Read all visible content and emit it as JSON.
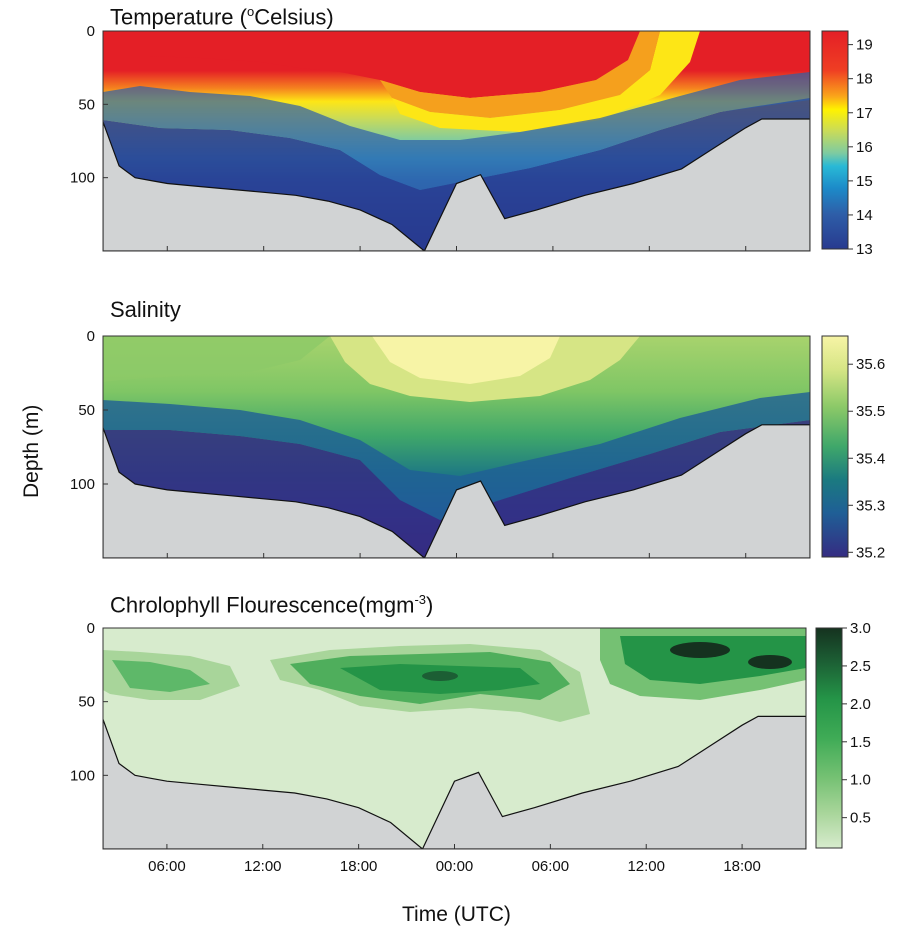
{
  "figure": {
    "xlabel": "Time (UTC)",
    "ylabel": "Depth (m)"
  },
  "chart_data": [
    {
      "type": "heatmap",
      "title": "Temperature (°Celsius)",
      "title_parts": {
        "before": "Temperature (",
        "sup": "o",
        "after": "Celsius)"
      },
      "x_ticks": [
        "06:00",
        "12:00",
        "18:00",
        "00:00",
        "06:00",
        "12:00",
        "18:00"
      ],
      "x_tick_labels_shown": false,
      "y_ticks": [
        0,
        50,
        100
      ],
      "ylim": [
        150,
        0
      ],
      "colorbar": {
        "ticks": [
          19,
          18,
          17,
          16,
          15,
          14,
          13
        ],
        "range": [
          13,
          19.4
        ],
        "colors": [
          "#e41f26",
          "#f26522",
          "#faa61a",
          "#fff200",
          "#c8db5a",
          "#7ecba1",
          "#29b9d6",
          "#1c8bc9",
          "#2e5ea8",
          "#283a8f"
        ]
      },
      "bottom_depth_m": [
        [
          0,
          62
        ],
        [
          1,
          92
        ],
        [
          2,
          100
        ],
        [
          3,
          102
        ],
        [
          4,
          104
        ],
        [
          6,
          106
        ],
        [
          8,
          108
        ],
        [
          10,
          110
        ],
        [
          12,
          112
        ],
        [
          14,
          116
        ],
        [
          16,
          122
        ],
        [
          18,
          132
        ],
        [
          20,
          150
        ],
        [
          22,
          104
        ],
        [
          23.5,
          98
        ],
        [
          25,
          128
        ],
        [
          27,
          122
        ],
        [
          30,
          112
        ],
        [
          33,
          104
        ],
        [
          36,
          94
        ],
        [
          38,
          80
        ],
        [
          40,
          66
        ],
        [
          41,
          60
        ],
        [
          44,
          60
        ]
      ]
    },
    {
      "type": "heatmap",
      "title": "Salinity",
      "x_ticks": [
        "06:00",
        "12:00",
        "18:00",
        "00:00",
        "06:00",
        "12:00",
        "18:00"
      ],
      "x_tick_labels_shown": false,
      "y_ticks": [
        0,
        50,
        100
      ],
      "ylim": [
        150,
        0
      ],
      "colorbar": {
        "ticks": [
          35.6,
          35.5,
          35.4,
          35.3,
          35.2
        ],
        "range": [
          35.19,
          35.66
        ],
        "colors": [
          "#f7f4a6",
          "#d6e585",
          "#a8d36d",
          "#6fbf66",
          "#3fa76a",
          "#22906f",
          "#1b7a80",
          "#1f5f96",
          "#2b459c",
          "#352c82"
        ]
      },
      "bottom_depth_m": [
        [
          0,
          62
        ],
        [
          1,
          92
        ],
        [
          2,
          100
        ],
        [
          3,
          102
        ],
        [
          4,
          104
        ],
        [
          6,
          106
        ],
        [
          8,
          108
        ],
        [
          10,
          110
        ],
        [
          12,
          112
        ],
        [
          14,
          116
        ],
        [
          16,
          122
        ],
        [
          18,
          132
        ],
        [
          20,
          150
        ],
        [
          22,
          104
        ],
        [
          23.5,
          98
        ],
        [
          25,
          128
        ],
        [
          27,
          122
        ],
        [
          30,
          112
        ],
        [
          33,
          104
        ],
        [
          36,
          94
        ],
        [
          38,
          80
        ],
        [
          40,
          66
        ],
        [
          41,
          60
        ],
        [
          44,
          60
        ]
      ]
    },
    {
      "type": "heatmap",
      "title": "Chrolophyll Flourescence(mgm-3)",
      "title_parts": {
        "before": "Chrolophyll Flourescence(mgm",
        "sup": "-3",
        "after": ")"
      },
      "x_ticks": [
        "06:00",
        "12:00",
        "18:00",
        "00:00",
        "06:00",
        "12:00",
        "18:00"
      ],
      "x_tick_labels_shown": true,
      "y_ticks": [
        0,
        50,
        100
      ],
      "ylim": [
        150,
        0
      ],
      "colorbar": {
        "ticks": [
          "3.0",
          "2.5",
          "2.0",
          "1.5",
          "1.0",
          "0.5"
        ],
        "range": [
          0.1,
          3.0
        ],
        "colors": [
          "#15321f",
          "#1c6a3a",
          "#249447",
          "#3fab56",
          "#75c173",
          "#a8d59a",
          "#d7ebcd"
        ]
      },
      "bottom_depth_m": [
        [
          0,
          62
        ],
        [
          1,
          92
        ],
        [
          2,
          100
        ],
        [
          3,
          102
        ],
        [
          4,
          104
        ],
        [
          6,
          106
        ],
        [
          8,
          108
        ],
        [
          10,
          110
        ],
        [
          12,
          112
        ],
        [
          14,
          116
        ],
        [
          16,
          122
        ],
        [
          18,
          132
        ],
        [
          20,
          150
        ],
        [
          22,
          104
        ],
        [
          23.5,
          98
        ],
        [
          25,
          128
        ],
        [
          27,
          122
        ],
        [
          30,
          112
        ],
        [
          33,
          104
        ],
        [
          36,
          94
        ],
        [
          38,
          80
        ],
        [
          40,
          66
        ],
        [
          41,
          60
        ],
        [
          44,
          60
        ]
      ]
    }
  ]
}
